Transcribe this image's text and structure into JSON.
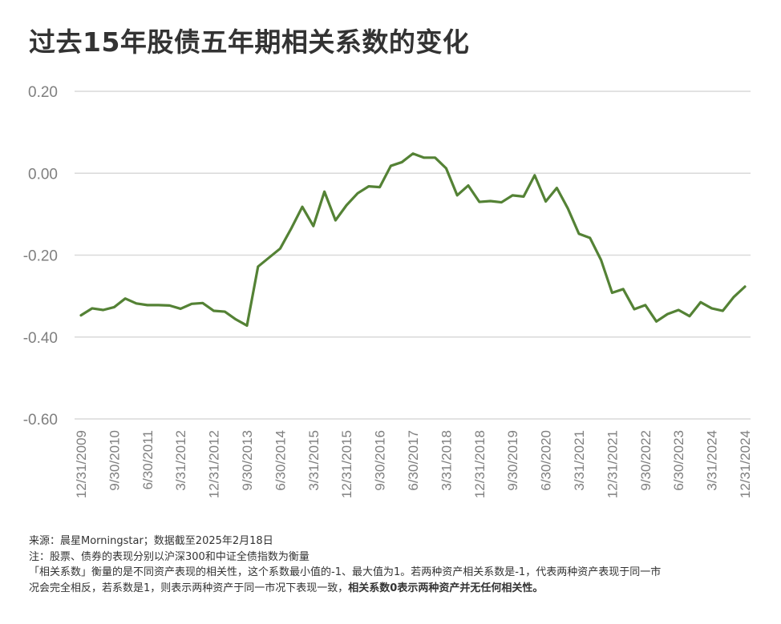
{
  "title": "过去15年股债五年期相关系数的变化",
  "notes": {
    "source": "来源：晨星Morningstar；数据截至2025年2月18日",
    "note": "注：股票、债券的表现分别以沪深300和中证全债指数为衡量",
    "definition_1": "「相关系数」衡量的是不同资产表现的相关性，这个系数最小值的-1、最大值为1。若两种资产相关系数是-1，代表两种资产表现于同一市",
    "definition_2": "况会完全相反，若系数是1，则表示两种资产于同一市况下表现一致，",
    "definition_2_bold": "相关系数0表示两种资产并无任何相关性。"
  },
  "colors": {
    "line": "#548235",
    "grid": "#d9d9d9",
    "axis_text": "#7f7f7f"
  },
  "chart_data": {
    "type": "line",
    "title": "过去15年股债五年期相关系数的变化",
    "xlabel": "",
    "ylabel": "",
    "ylim": [
      -0.6,
      0.2
    ],
    "yticks": [
      "0.20",
      "0.00",
      "-0.20",
      "-0.40",
      "-0.60"
    ],
    "ytick_values": [
      0.2,
      0.0,
      -0.2,
      -0.4,
      -0.6
    ],
    "grid": true,
    "legend": "none",
    "xtick_labels": [
      "12/31/2009",
      "9/30/2010",
      "6/30/2011",
      "3/31/2012",
      "12/31/2012",
      "9/30/2013",
      "6/30/2014",
      "3/31/2015",
      "12/31/2015",
      "9/30/2016",
      "6/30/2017",
      "3/31/2018",
      "12/31/2018",
      "9/30/2019",
      "6/30/2020",
      "3/31/2021",
      "12/31/2021",
      "9/30/2022",
      "6/30/2023",
      "3/31/2024",
      "12/31/2024"
    ],
    "x": [
      "12/31/2009",
      "3/31/2010",
      "6/30/2010",
      "9/30/2010",
      "12/31/2010",
      "3/31/2011",
      "6/30/2011",
      "9/30/2011",
      "12/31/2011",
      "3/31/2012",
      "6/30/2012",
      "9/30/2012",
      "12/31/2012",
      "3/31/2013",
      "6/30/2013",
      "9/30/2013",
      "12/31/2013",
      "3/31/2014",
      "6/30/2014",
      "9/30/2014",
      "12/31/2014",
      "3/31/2015",
      "6/30/2015",
      "9/30/2015",
      "12/31/2015",
      "3/31/2016",
      "6/30/2016",
      "9/30/2016",
      "12/31/2016",
      "3/31/2017",
      "6/30/2017",
      "9/30/2017",
      "12/31/2017",
      "3/31/2018",
      "6/30/2018",
      "9/30/2018",
      "12/31/2018",
      "3/31/2019",
      "6/30/2019",
      "9/30/2019",
      "12/31/2019",
      "3/31/2020",
      "6/30/2020",
      "9/30/2020",
      "12/31/2020",
      "3/31/2021",
      "6/30/2021",
      "9/30/2021",
      "12/31/2021",
      "3/31/2022",
      "6/30/2022",
      "9/30/2022",
      "12/31/2022",
      "3/31/2023",
      "6/30/2023",
      "9/30/2023",
      "12/31/2023",
      "3/31/2024",
      "6/30/2024",
      "9/30/2024",
      "12/31/2024"
    ],
    "series": [
      {
        "values": [
          -0.347,
          -0.33,
          -0.334,
          -0.327,
          -0.306,
          -0.318,
          -0.322,
          -0.322,
          -0.323,
          -0.331,
          -0.319,
          -0.317,
          -0.336,
          -0.338,
          -0.357,
          -0.372,
          -0.228,
          -0.206,
          -0.184,
          -0.135,
          -0.082,
          -0.129,
          -0.045,
          -0.115,
          -0.078,
          -0.049,
          -0.032,
          -0.034,
          0.018,
          0.027,
          0.048,
          0.038,
          0.038,
          0.012,
          -0.054,
          -0.03,
          -0.07,
          -0.068,
          -0.071,
          -0.054,
          -0.057,
          -0.005,
          -0.069,
          -0.036,
          -0.086,
          -0.148,
          -0.158,
          -0.212,
          -0.292,
          -0.283,
          -0.332,
          -0.322,
          -0.362,
          -0.344,
          -0.334,
          -0.349,
          -0.315,
          -0.33,
          -0.336,
          -0.302,
          -0.277
        ]
      }
    ]
  }
}
